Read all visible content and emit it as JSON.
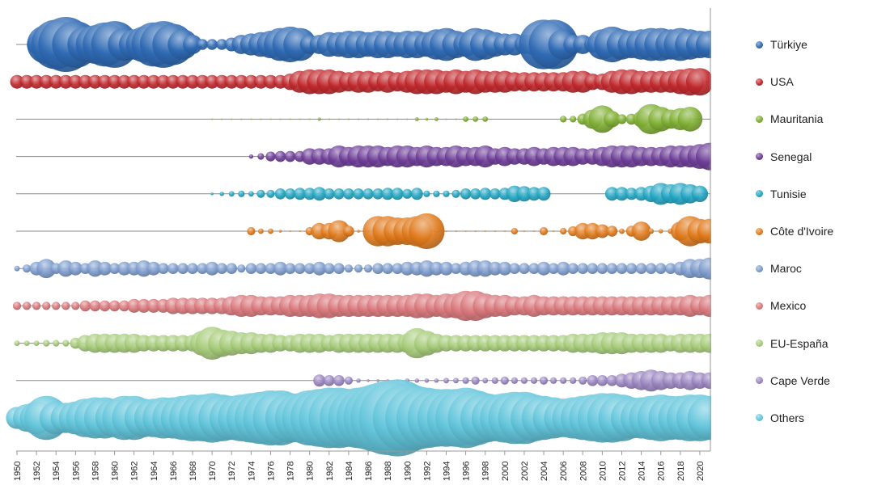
{
  "chart_data": {
    "type": "bubble",
    "x_start": 1950,
    "x_end": 2021,
    "xtick_labels": [
      "1950",
      "1952",
      "1954",
      "1956",
      "1958",
      "1960",
      "1962",
      "1964",
      "1966",
      "1968",
      "1970",
      "1972",
      "1974",
      "1976",
      "1978",
      "1980",
      "1982",
      "1984",
      "1986",
      "1988",
      "1990",
      "1992",
      "1994",
      "1996",
      "1998",
      "2000",
      "2002",
      "2004",
      "2006",
      "2008",
      "2010",
      "2012",
      "2014",
      "2016",
      "2018",
      "2020"
    ],
    "size_note_free": true,
    "series": [
      {
        "name": "Türkiye",
        "color": "#2f6ab4",
        "start": 1952,
        "sizes": [
          0.35,
          0.7,
          0.9,
          1.0,
          0.85,
          0.65,
          0.7,
          0.8,
          0.85,
          0.6,
          0.55,
          0.65,
          0.8,
          0.85,
          0.75,
          0.55,
          0.35,
          0.2,
          0.2,
          0.2,
          0.25,
          0.35,
          0.4,
          0.45,
          0.5,
          0.6,
          0.65,
          0.6,
          0.35,
          0.35,
          0.45,
          0.45,
          0.5,
          0.5,
          0.45,
          0.5,
          0.5,
          0.45,
          0.5,
          0.5,
          0.45,
          0.55,
          0.6,
          0.5,
          0.45,
          0.6,
          0.55,
          0.45,
          0.4,
          0.4,
          0.35,
          0.4,
          0.9,
          0.9,
          0.55,
          0.35,
          0.35,
          0.3,
          0.55,
          0.65,
          0.55,
          0.5,
          0.55,
          0.6,
          0.6,
          0.55,
          0.6,
          0.55,
          0.5,
          0.5
        ]
      },
      {
        "name": "USA",
        "color": "#c0282c",
        "start": 1950,
        "sizes": [
          0.25,
          0.25,
          0.25,
          0.25,
          0.25,
          0.25,
          0.25,
          0.25,
          0.25,
          0.25,
          0.25,
          0.25,
          0.25,
          0.25,
          0.25,
          0.25,
          0.25,
          0.25,
          0.25,
          0.25,
          0.25,
          0.25,
          0.25,
          0.25,
          0.25,
          0.25,
          0.25,
          0.25,
          0.3,
          0.4,
          0.45,
          0.45,
          0.45,
          0.4,
          0.35,
          0.4,
          0.4,
          0.35,
          0.4,
          0.35,
          0.4,
          0.45,
          0.45,
          0.45,
          0.4,
          0.45,
          0.4,
          0.45,
          0.4,
          0.4,
          0.4,
          0.35,
          0.35,
          0.35,
          0.35,
          0.35,
          0.35,
          0.4,
          0.4,
          0.3,
          0.3,
          0.4,
          0.45,
          0.45,
          0.4,
          0.4,
          0.4,
          0.4,
          0.45,
          0.5,
          0.5
        ]
      },
      {
        "name": "Mauritania",
        "color": "#7fae32",
        "start": 1970,
        "sizes": [
          0.03,
          0.03,
          0.03,
          0.03,
          0.03,
          0.03,
          0.03,
          0.03,
          0.03,
          0.03,
          0.03,
          0.06,
          0.03,
          0.03,
          0.03,
          0.03,
          0.03,
          0.03,
          0.03,
          0.03,
          0.03,
          0.07,
          0.05,
          0.07,
          0.03,
          0.03,
          0.1,
          0.1,
          0.1,
          0,
          0,
          0,
          0,
          0,
          0,
          0,
          0.12,
          0.12,
          0.2,
          0.35,
          0.5,
          0.3,
          0.18,
          0.2,
          0.3,
          0.55,
          0.45,
          0.35,
          0.4,
          0.45
        ]
      },
      {
        "name": "Senegal",
        "color": "#6d3d97",
        "start": 1974,
        "sizes": [
          0.08,
          0.12,
          0.18,
          0.2,
          0.2,
          0.2,
          0.3,
          0.3,
          0.3,
          0.4,
          0.35,
          0.4,
          0.4,
          0.4,
          0.35,
          0.4,
          0.4,
          0.35,
          0.4,
          0.35,
          0.35,
          0.4,
          0.35,
          0.35,
          0.4,
          0.3,
          0.35,
          0.3,
          0.3,
          0.35,
          0.3,
          0.35,
          0.35,
          0.35,
          0.3,
          0.3,
          0.35,
          0.4,
          0.4,
          0.4,
          0.35,
          0.35,
          0.35,
          0.4,
          0.4,
          0.4,
          0.45,
          0.5
        ]
      },
      {
        "name": "Tunisie",
        "color": "#22a5c2",
        "start": 1970,
        "sizes": [
          0.05,
          0.08,
          0.1,
          0.12,
          0.1,
          0.15,
          0.15,
          0.2,
          0.2,
          0.22,
          0.22,
          0.25,
          0.2,
          0.2,
          0.2,
          0.2,
          0.2,
          0.2,
          0.22,
          0.22,
          0.18,
          0.22,
          0.12,
          0.12,
          0.12,
          0.15,
          0.2,
          0.2,
          0.22,
          0.2,
          0.22,
          0.3,
          0.28,
          0.25,
          0.25,
          0,
          0,
          0,
          0,
          0,
          0,
          0.25,
          0.25,
          0.22,
          0.25,
          0.3,
          0.4,
          0.35,
          0.4,
          0.35,
          0.3
        ]
      },
      {
        "name": "Côte d'Ivoire",
        "color": "#e07a1c",
        "start": 1974,
        "sizes": [
          0.15,
          0.1,
          0.1,
          0.05,
          0.03,
          0.03,
          0.15,
          0.3,
          0.3,
          0.4,
          0.2,
          0.05,
          0.05,
          0.55,
          0.55,
          0.5,
          0.5,
          0.55,
          0.65,
          0.03,
          0.03,
          0.03,
          0.03,
          0.03,
          0.03,
          0.03,
          0.03,
          0.12,
          0.03,
          0.03,
          0.15,
          0.03,
          0.12,
          0.18,
          0.3,
          0.3,
          0.25,
          0.2,
          0.1,
          0.2,
          0.35,
          0.1,
          0.08,
          0.1,
          0.35,
          0.55,
          0.45,
          0.45
        ]
      },
      {
        "name": "Maroc",
        "color": "#7c9bcc",
        "start": 1950,
        "sizes": [
          0.1,
          0.15,
          0.25,
          0.35,
          0.2,
          0.3,
          0.25,
          0.2,
          0.3,
          0.25,
          0.2,
          0.25,
          0.25,
          0.3,
          0.25,
          0.2,
          0.2,
          0.2,
          0.2,
          0.2,
          0.25,
          0.2,
          0.2,
          0.15,
          0.2,
          0.2,
          0.2,
          0.25,
          0.2,
          0.2,
          0.2,
          0.25,
          0.2,
          0.2,
          0.15,
          0.15,
          0.15,
          0.2,
          0.2,
          0.2,
          0.25,
          0.25,
          0.3,
          0.25,
          0.25,
          0.2,
          0.25,
          0.3,
          0.3,
          0.25,
          0.25,
          0.2,
          0.2,
          0.2,
          0.25,
          0.2,
          0.25,
          0.2,
          0.2,
          0.2,
          0.2,
          0.2,
          0.2,
          0.2,
          0.2,
          0.2,
          0.2,
          0.2,
          0.25,
          0.35,
          0.35,
          0.4
        ]
      },
      {
        "name": "Mexico",
        "color": "#d9787c",
        "start": 1950,
        "sizes": [
          0.15,
          0.15,
          0.15,
          0.15,
          0.15,
          0.15,
          0.15,
          0.2,
          0.2,
          0.2,
          0.2,
          0.2,
          0.25,
          0.25,
          0.25,
          0.25,
          0.3,
          0.3,
          0.3,
          0.3,
          0.3,
          0.3,
          0.35,
          0.4,
          0.4,
          0.35,
          0.35,
          0.35,
          0.4,
          0.4,
          0.4,
          0.45,
          0.45,
          0.4,
          0.4,
          0.4,
          0.4,
          0.4,
          0.4,
          0.4,
          0.4,
          0.45,
          0.45,
          0.4,
          0.45,
          0.45,
          0.55,
          0.55,
          0.45,
          0.4,
          0.4,
          0.35,
          0.35,
          0.4,
          0.35,
          0.35,
          0.35,
          0.35,
          0.35,
          0.35,
          0.35,
          0.35,
          0.35,
          0.35,
          0.35,
          0.35,
          0.35,
          0.35,
          0.35,
          0.4,
          0.35,
          0.4
        ]
      },
      {
        "name": "EU-España",
        "color": "#a7cc7a",
        "start": 1950,
        "sizes": [
          0.1,
          0.1,
          0.1,
          0.12,
          0.12,
          0.12,
          0.2,
          0.3,
          0.35,
          0.35,
          0.35,
          0.35,
          0.35,
          0.3,
          0.3,
          0.3,
          0.3,
          0.3,
          0.3,
          0.45,
          0.6,
          0.5,
          0.45,
          0.4,
          0.4,
          0.35,
          0.35,
          0.3,
          0.3,
          0.35,
          0.35,
          0.35,
          0.3,
          0.35,
          0.35,
          0.35,
          0.35,
          0.35,
          0.35,
          0.35,
          0.35,
          0.55,
          0.45,
          0.35,
          0.3,
          0.3,
          0.3,
          0.3,
          0.3,
          0.3,
          0.3,
          0.3,
          0.3,
          0.3,
          0.3,
          0.3,
          0.3,
          0.35,
          0.35,
          0.35,
          0.4,
          0.4,
          0.4,
          0.35,
          0.35,
          0.35,
          0.35,
          0.3,
          0.35,
          0.35,
          0.35,
          0.35
        ]
      },
      {
        "name": "Cape Verde",
        "color": "#9a85c0",
        "start": 1981,
        "sizes": [
          0.22,
          0.2,
          0.2,
          0.15,
          0.08,
          0.05,
          0.05,
          0.05,
          0.05,
          0.08,
          0.08,
          0.08,
          0.08,
          0.1,
          0.1,
          0.12,
          0.15,
          0.1,
          0.12,
          0.15,
          0.12,
          0.12,
          0.12,
          0.15,
          0.12,
          0.12,
          0.12,
          0.15,
          0.2,
          0.2,
          0.2,
          0.25,
          0.3,
          0.35,
          0.4,
          0.35,
          0.3,
          0.3,
          0.35,
          0.3,
          0.3
        ]
      },
      {
        "name": "Others",
        "color": "#64c6dc",
        "start": 1950,
        "sizes": [
          0.4,
          0.5,
          0.6,
          0.8,
          0.6,
          0.55,
          0.6,
          0.7,
          0.75,
          0.75,
          0.7,
          0.8,
          0.8,
          0.7,
          0.7,
          0.75,
          0.75,
          0.8,
          0.85,
          0.85,
          0.9,
          0.85,
          0.8,
          0.85,
          0.9,
          0.95,
          1.0,
          1.0,
          0.9,
          0.9,
          1.0,
          1.05,
          1.1,
          1.1,
          1.05,
          1.1,
          1.15,
          1.25,
          1.35,
          1.4,
          1.25,
          1.15,
          1.1,
          1.05,
          1.05,
          1.05,
          1.1,
          1.0,
          0.9,
          0.85,
          0.9,
          0.95,
          0.95,
          0.85,
          0.8,
          0.75,
          0.7,
          0.75,
          0.8,
          0.85,
          0.9,
          0.9,
          0.85,
          0.75,
          0.75,
          0.8,
          0.85,
          0.8,
          0.8,
          0.85,
          0.85,
          0.8
        ]
      }
    ]
  }
}
